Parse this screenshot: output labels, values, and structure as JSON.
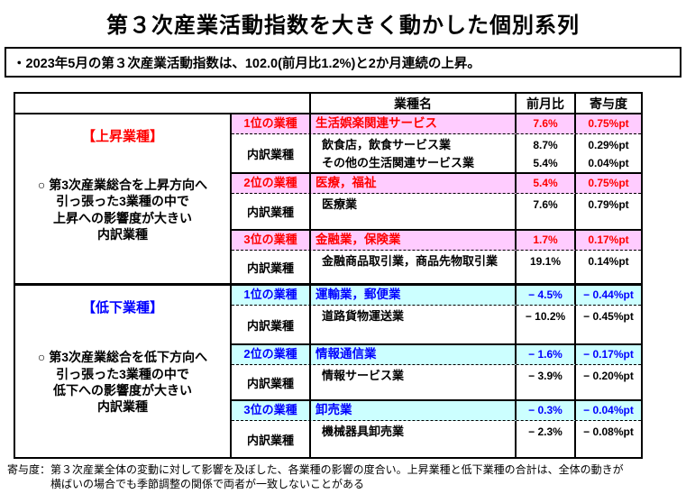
{
  "page": {
    "title": "第３次産業活動指数を大きく動かした個別系列",
    "summary": "・2023年5月の第３次産業活動指数は、102.0(前月比1.2%)と2か月連続の上昇。",
    "footnote_line1": "寄与度：第３次産業全体の変動に対して影響を及ぼした、各業種の影響の度合い。上昇業種と低下業種の合計は、全体の動きが",
    "footnote_line2": "横ばいの場合でも季節調整の関係で両者が一致しないことがある"
  },
  "table": {
    "headers": {
      "industry": "業種名",
      "mom": "前月比",
      "contribution": "寄与度"
    },
    "sections": [
      {
        "id": "up",
        "label": "【上昇業種】",
        "accent": "#ff0000",
        "row_bg": "#ffccff",
        "description_lines": [
          "○ 第3次産業総合を上昇方向へ",
          "引っ張った3業種の中で",
          "上昇への影響度が大きい",
          "内訳業種"
        ],
        "groups": [
          {
            "rank_label": "1位の業種",
            "industry": "生活娯楽関連サービス",
            "mom": "7.6%",
            "contribution": "0.75%pt",
            "breakdown_label": "内訳業種",
            "details": [
              {
                "name": "飲食店，飲食サービス業",
                "mom": "8.7%",
                "contribution": "0.29%pt"
              },
              {
                "name": "その他の生活関連サービス業",
                "mom": "5.4%",
                "contribution": "0.04%pt"
              }
            ]
          },
          {
            "rank_label": "2位の業種",
            "industry": "医療，福祉",
            "mom": "5.4%",
            "contribution": "0.75%pt",
            "breakdown_label": "内訳業種",
            "details": [
              {
                "name": "医療業",
                "mom": "7.6%",
                "contribution": "0.79%pt"
              }
            ]
          },
          {
            "rank_label": "3位の業種",
            "industry": "金融業，保険業",
            "mom": "1.7%",
            "contribution": "0.17%pt",
            "breakdown_label": "内訳業種",
            "details": [
              {
                "name": "金融商品取引業，商品先物取引業",
                "mom": "19.1%",
                "contribution": "0.14%pt"
              }
            ]
          }
        ]
      },
      {
        "id": "down",
        "label": "【低下業種】",
        "accent": "#0000ff",
        "row_bg": "#ccffff",
        "description_lines": [
          "○ 第3次産業総合を低下方向へ",
          "引っ張った3業種の中で",
          "低下への影響度が大きい",
          "内訳業種"
        ],
        "groups": [
          {
            "rank_label": "1位の業種",
            "industry": "運輸業，郵便業",
            "mom": "− 4.5%",
            "contribution": "− 0.44%pt",
            "breakdown_label": "内訳業種",
            "details": [
              {
                "name": "道路貨物運送業",
                "mom": "− 10.2%",
                "contribution": "− 0.45%pt"
              }
            ]
          },
          {
            "rank_label": "2位の業種",
            "industry": "情報通信業",
            "mom": "− 1.6%",
            "contribution": "− 0.17%pt",
            "breakdown_label": "内訳業種",
            "details": [
              {
                "name": "情報サービス業",
                "mom": "− 3.9%",
                "contribution": "− 0.20%pt"
              }
            ]
          },
          {
            "rank_label": "3位の業種",
            "industry": "卸売業",
            "mom": "− 0.3%",
            "contribution": "− 0.04%pt",
            "breakdown_label": "内訳業種",
            "details": [
              {
                "name": "機械器具卸売業",
                "mom": "− 2.3%",
                "contribution": "− 0.08%pt"
              }
            ]
          }
        ]
      }
    ]
  }
}
